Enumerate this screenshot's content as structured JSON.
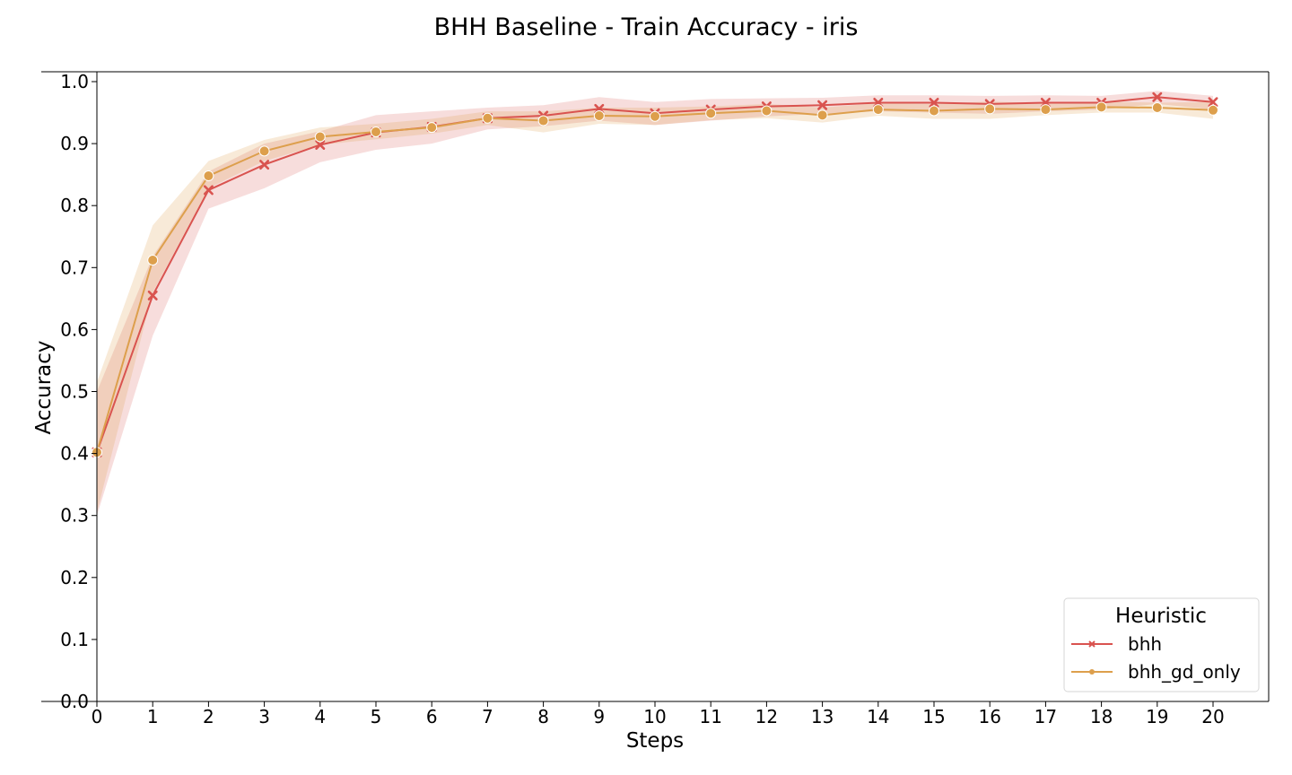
{
  "chart_data": {
    "type": "line",
    "title": "BHH Baseline - Train Accuracy - iris",
    "xlabel": "Steps",
    "ylabel": "Accuracy",
    "x": [
      0,
      1,
      2,
      3,
      4,
      5,
      6,
      7,
      8,
      9,
      10,
      11,
      12,
      13,
      14,
      15,
      16,
      17,
      18,
      19,
      20
    ],
    "xticks": [
      "0",
      "1",
      "2",
      "3",
      "4",
      "5",
      "6",
      "7",
      "8",
      "9",
      "10",
      "11",
      "12",
      "13",
      "14",
      "15",
      "16",
      "17",
      "18",
      "19",
      "20"
    ],
    "yticks": [
      "0.0",
      "0.1",
      "0.2",
      "0.3",
      "0.4",
      "0.5",
      "0.6",
      "0.7",
      "0.8",
      "0.9",
      "1.0"
    ],
    "ylim": [
      0,
      1.0
    ],
    "xlim": [
      0,
      20
    ],
    "grid": false,
    "legend": {
      "title": "Heuristic",
      "placement": "bottom-right"
    },
    "series": [
      {
        "name": "bhh",
        "color": "#d9534f",
        "marker": "x",
        "values": [
          0.402,
          0.655,
          0.825,
          0.866,
          0.898,
          0.918,
          0.927,
          0.941,
          0.945,
          0.956,
          0.949,
          0.955,
          0.96,
          0.962,
          0.966,
          0.966,
          0.964,
          0.966,
          0.966,
          0.975,
          0.967
        ],
        "lower": [
          0.3,
          0.59,
          0.795,
          0.828,
          0.87,
          0.89,
          0.9,
          0.923,
          0.928,
          0.937,
          0.93,
          0.937,
          0.944,
          0.948,
          0.952,
          0.95,
          0.948,
          0.952,
          0.955,
          0.964,
          0.955
        ],
        "upper": [
          0.5,
          0.718,
          0.855,
          0.9,
          0.92,
          0.946,
          0.952,
          0.958,
          0.962,
          0.975,
          0.967,
          0.972,
          0.973,
          0.974,
          0.978,
          0.978,
          0.977,
          0.978,
          0.977,
          0.985,
          0.977
        ]
      },
      {
        "name": "bhh_gd_only",
        "color": "#dd9f4c",
        "marker": "o",
        "values": [
          0.402,
          0.712,
          0.848,
          0.888,
          0.911,
          0.919,
          0.926,
          0.941,
          0.937,
          0.945,
          0.944,
          0.949,
          0.953,
          0.946,
          0.955,
          0.953,
          0.956,
          0.955,
          0.959,
          0.958,
          0.954
        ],
        "lower": [
          0.305,
          0.66,
          0.828,
          0.872,
          0.898,
          0.907,
          0.916,
          0.93,
          0.918,
          0.932,
          0.93,
          0.938,
          0.941,
          0.934,
          0.945,
          0.94,
          0.94,
          0.946,
          0.95,
          0.95,
          0.94
        ],
        "upper": [
          0.515,
          0.768,
          0.872,
          0.906,
          0.926,
          0.932,
          0.94,
          0.952,
          0.952,
          0.958,
          0.958,
          0.96,
          0.964,
          0.958,
          0.965,
          0.964,
          0.968,
          0.965,
          0.968,
          0.966,
          0.967
        ]
      }
    ]
  }
}
